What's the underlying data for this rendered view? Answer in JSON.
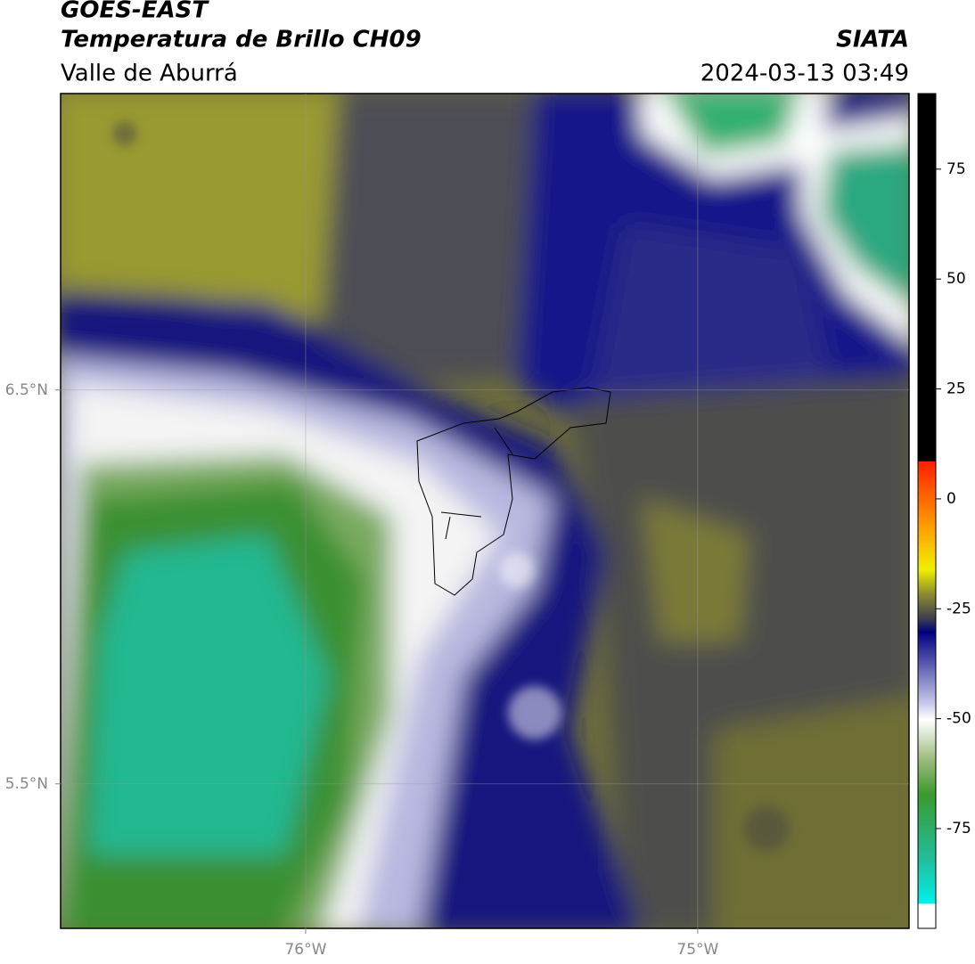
{
  "header": {
    "title": "GOES-EAST",
    "subtitle": "Temperatura de Brillo CH09",
    "region": "Valle de Aburrá",
    "source": "SIATA",
    "datetime": "2024-03-13 03:49"
  },
  "map": {
    "lonlim": [
      -76.625,
      -74.461
    ],
    "latlim": [
      5.133,
      7.253
    ],
    "lonticks": [
      {
        "value": -76,
        "label": "76°W"
      },
      {
        "value": -75,
        "label": "75°W"
      }
    ],
    "latticks": [
      {
        "value": 6.5,
        "label": "6.5°N"
      },
      {
        "value": 5.5,
        "label": "5.5°N"
      }
    ]
  },
  "colorbar": {
    "lim": [
      -97.7,
      92.2
    ],
    "ticks": [
      75,
      50,
      25,
      0,
      -25,
      -50,
      -75
    ]
  }
}
